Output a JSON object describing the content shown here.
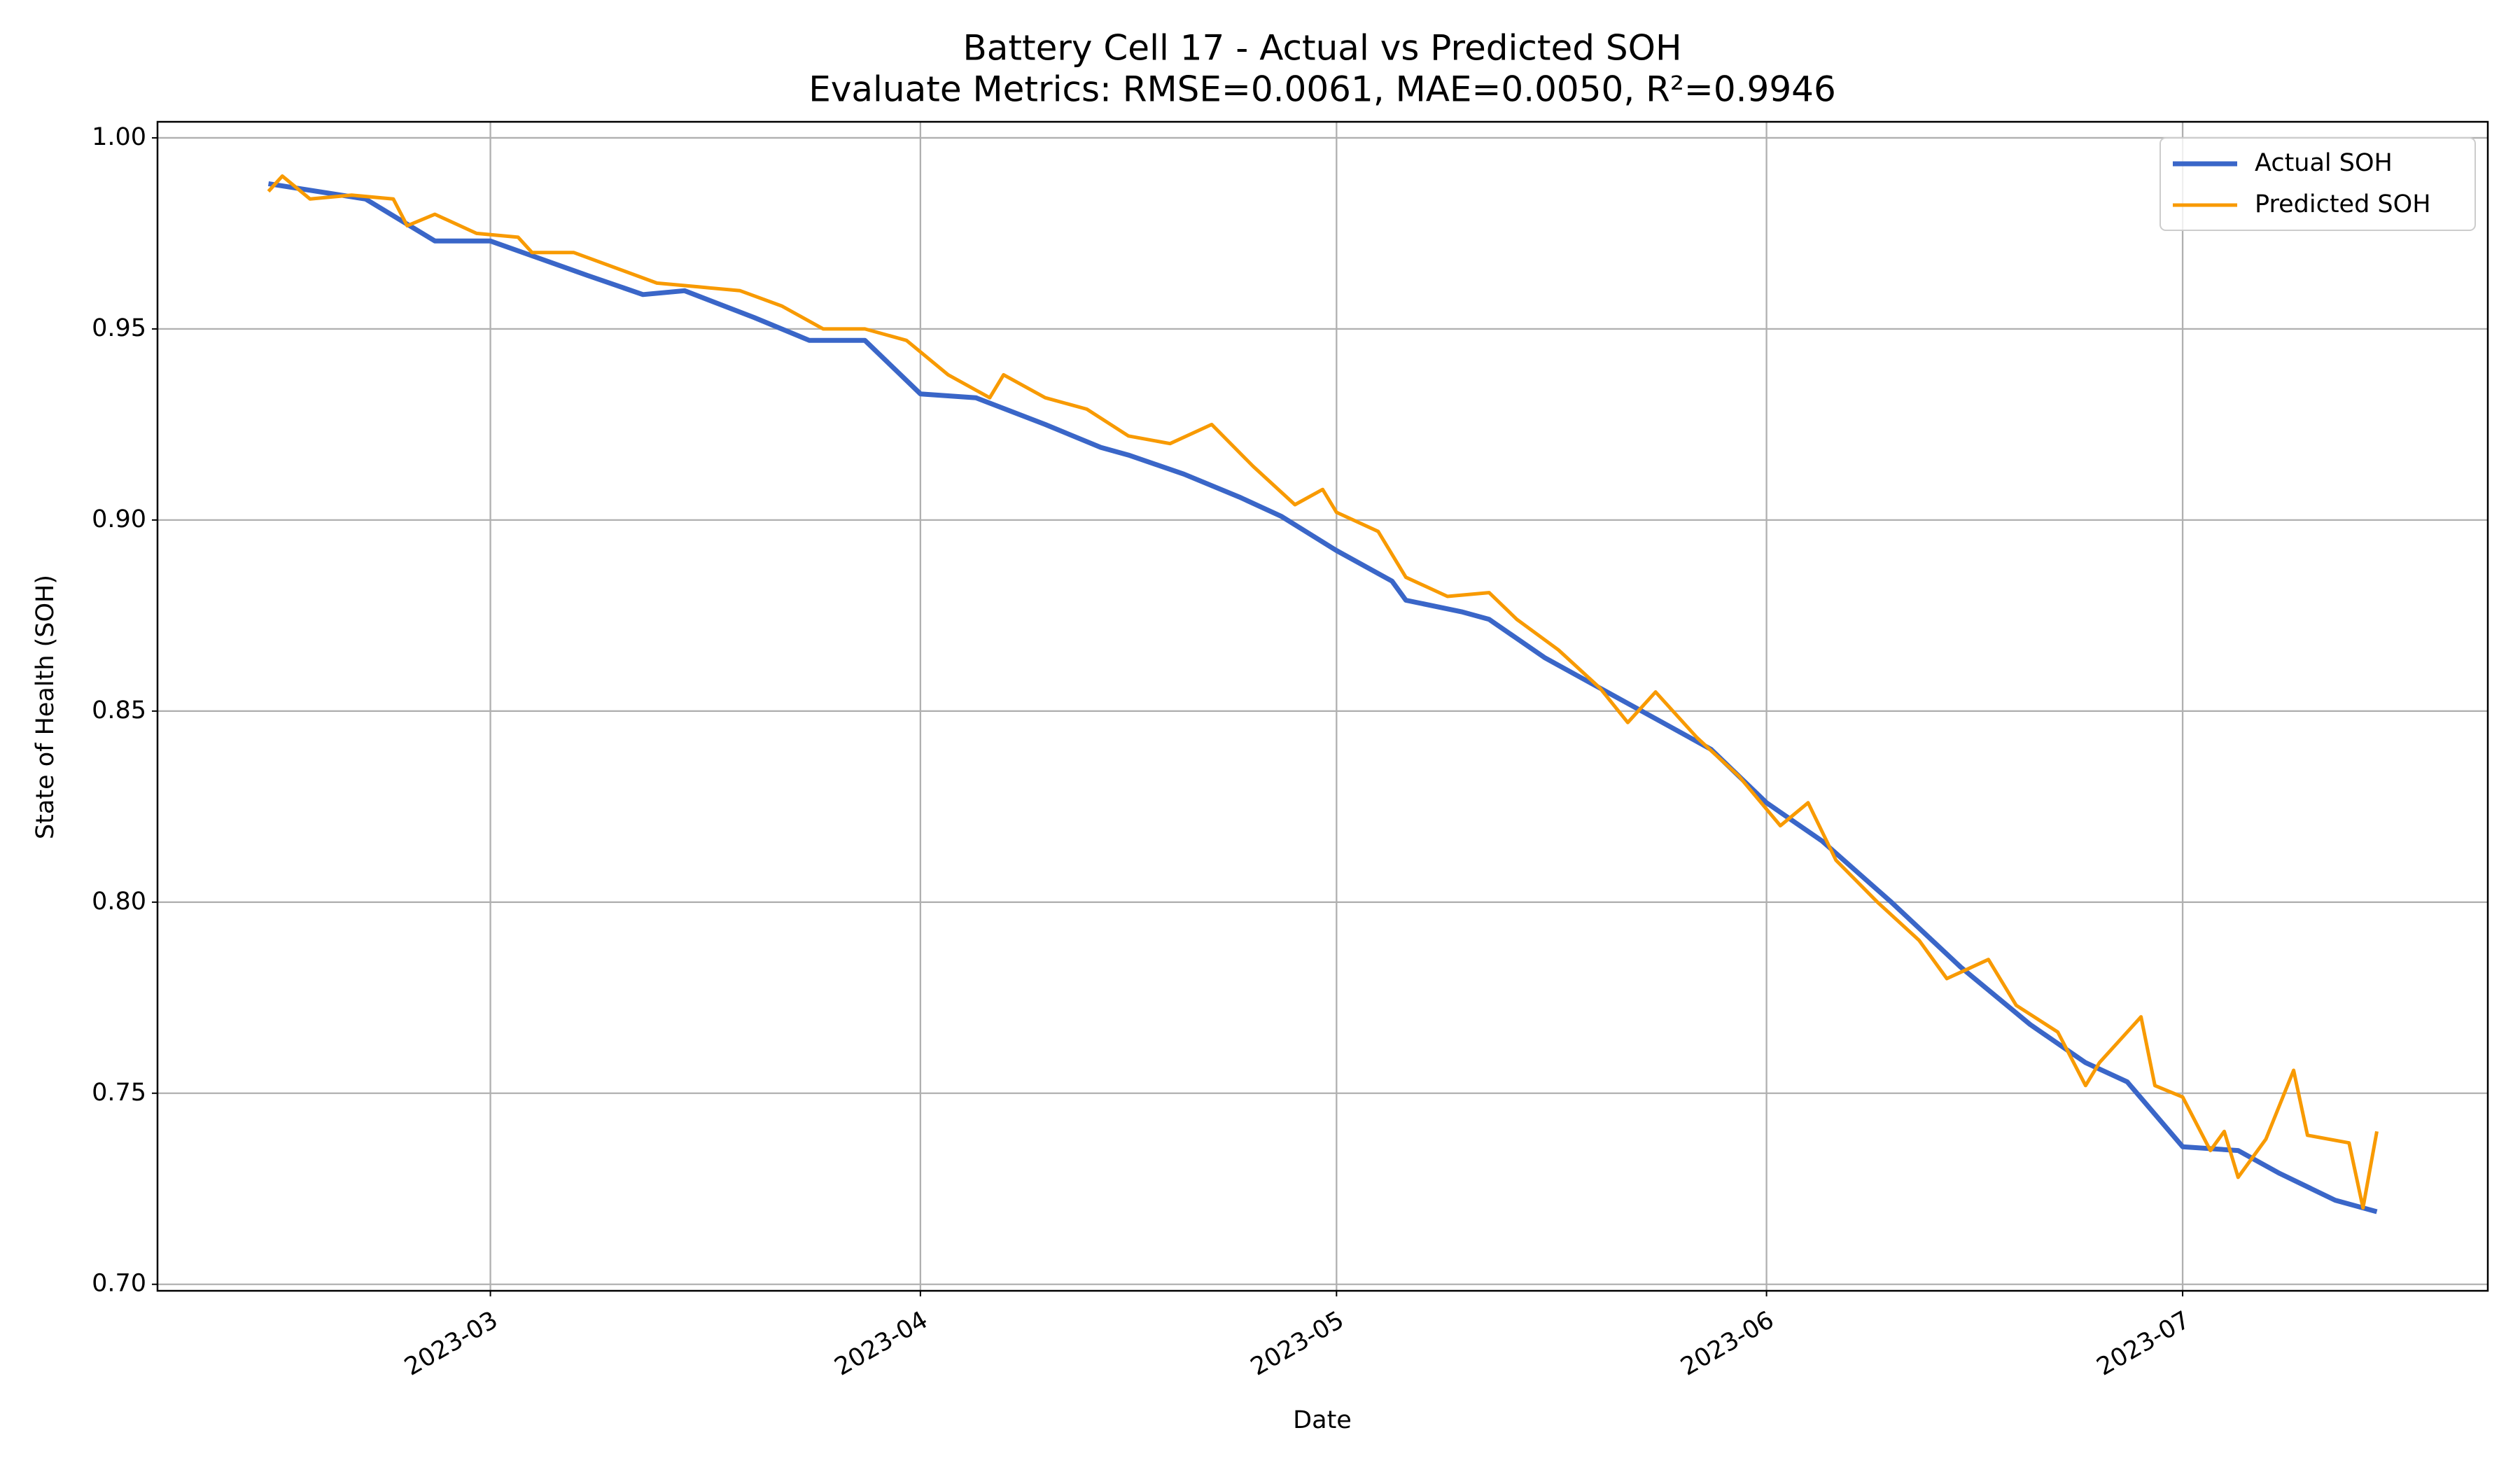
{
  "chart_data": {
    "type": "line",
    "title": "Battery Cell 17 - Actual vs Predicted SOH",
    "subtitle": "Evaluate Metrics: RMSE=0.0061, MAE=0.0050, R²=0.9946",
    "x_label": "Date",
    "y_label": "State of Health (SOH)",
    "xlim": [
      "2023-02-05",
      "2023-07-23"
    ],
    "xticks": [
      {
        "value": "2023-03-01",
        "label": "2023-03"
      },
      {
        "value": "2023-04-01",
        "label": "2023-04"
      },
      {
        "value": "2023-05-01",
        "label": "2023-05"
      },
      {
        "value": "2023-06-01",
        "label": "2023-06"
      },
      {
        "value": "2023-07-01",
        "label": "2023-07"
      }
    ],
    "ylim": [
      0.6983,
      1.0042
    ],
    "yticks": [
      {
        "value": 0.7,
        "label": "0.70"
      },
      0.75,
      {
        "value": 0.8,
        "label": "0.80"
      },
      0.85,
      {
        "value": 0.9,
        "label": "0.90"
      },
      0.95,
      {
        "value": 1.0,
        "label": "1.00"
      }
    ],
    "grid": true,
    "legend": "upper right",
    "series": [
      {
        "name": "Actual SOH",
        "color": "#3a66c8",
        "x": [
          "2023-02-13",
          "2023-02-20",
          "2023-02-25",
          "2023-03-01",
          "2023-03-08",
          "2023-03-12",
          "2023-03-15",
          "2023-03-20",
          "2023-03-24",
          "2023-03-28",
          "2023-04-01",
          "2023-04-05",
          "2023-04-10",
          "2023-04-14",
          "2023-04-16",
          "2023-04-20",
          "2023-04-24",
          "2023-04-27",
          "2023-05-01",
          "2023-05-05",
          "2023-05-06",
          "2023-05-10",
          "2023-05-12",
          "2023-05-16",
          "2023-05-20",
          "2023-05-24",
          "2023-05-28",
          "2023-06-01",
          "2023-06-05",
          "2023-06-10",
          "2023-06-15",
          "2023-06-20",
          "2023-06-24",
          "2023-06-27",
          "2023-07-01",
          "2023-07-05",
          "2023-07-08",
          "2023-07-12",
          "2023-07-15"
        ],
        "values": [
          0.988,
          0.984,
          0.973,
          0.973,
          0.964,
          0.959,
          0.96,
          0.953,
          0.947,
          0.947,
          0.933,
          0.932,
          0.925,
          0.919,
          0.917,
          0.912,
          0.906,
          0.901,
          0.892,
          0.884,
          0.879,
          0.876,
          0.874,
          0.864,
          0.856,
          0.848,
          0.84,
          0.826,
          0.816,
          0.8,
          0.783,
          0.768,
          0.758,
          0.753,
          0.736,
          0.735,
          0.729,
          0.722,
          0.719
        ]
      },
      {
        "name": "Predicted SOH",
        "color": "#f89a00",
        "x": [
          "2023-02-13",
          "2023-02-14",
          "2023-02-16",
          "2023-02-19",
          "2023-02-22",
          "2023-02-23",
          "2023-02-25",
          "2023-02-28",
          "2023-03-03",
          "2023-03-04",
          "2023-03-07",
          "2023-03-10",
          "2023-03-13",
          "2023-03-16",
          "2023-03-19",
          "2023-03-22",
          "2023-03-25",
          "2023-03-28",
          "2023-03-31",
          "2023-04-03",
          "2023-04-06",
          "2023-04-07",
          "2023-04-10",
          "2023-04-13",
          "2023-04-16",
          "2023-04-19",
          "2023-04-22",
          "2023-04-25",
          "2023-04-28",
          "2023-04-30",
          "2023-05-01",
          "2023-05-04",
          "2023-05-06",
          "2023-05-09",
          "2023-05-12",
          "2023-05-14",
          "2023-05-17",
          "2023-05-20",
          "2023-05-22",
          "2023-05-24",
          "2023-05-27",
          "2023-05-30",
          "2023-06-02",
          "2023-06-04",
          "2023-06-06",
          "2023-06-09",
          "2023-06-12",
          "2023-06-14",
          "2023-06-17",
          "2023-06-19",
          "2023-06-22",
          "2023-06-24",
          "2023-06-25",
          "2023-06-28",
          "2023-06-29",
          "2023-07-01",
          "2023-07-03",
          "2023-07-04",
          "2023-07-05",
          "2023-07-07",
          "2023-07-09",
          "2023-07-10",
          "2023-07-13",
          "2023-07-14",
          "2023-07-15"
        ],
        "values": [
          0.986,
          0.99,
          0.984,
          0.985,
          0.984,
          0.977,
          0.98,
          0.975,
          0.974,
          0.97,
          0.97,
          0.966,
          0.962,
          0.961,
          0.96,
          0.956,
          0.95,
          0.95,
          0.947,
          0.938,
          0.932,
          0.938,
          0.932,
          0.929,
          0.922,
          0.92,
          0.925,
          0.914,
          0.904,
          0.908,
          0.902,
          0.897,
          0.885,
          0.88,
          0.881,
          0.874,
          0.866,
          0.856,
          0.847,
          0.855,
          0.843,
          0.833,
          0.82,
          0.826,
          0.811,
          0.8,
          0.79,
          0.78,
          0.785,
          0.773,
          0.766,
          0.752,
          0.758,
          0.77,
          0.752,
          0.749,
          0.735,
          0.74,
          0.728,
          0.738,
          0.756,
          0.739,
          0.737,
          0.72,
          0.74
        ]
      }
    ]
  }
}
